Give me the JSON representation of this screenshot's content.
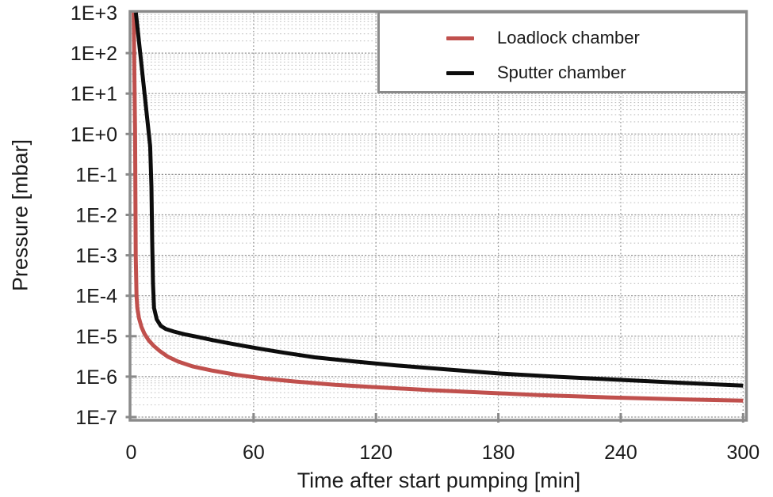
{
  "chart_data": {
    "type": "line",
    "title": "",
    "xlabel": "Time after start pumping [min]",
    "ylabel": "Pressure [mbar]",
    "x_ticks": [
      0,
      60,
      120,
      180,
      240,
      300
    ],
    "x_tick_labels": [
      "0",
      "60",
      "120",
      "180",
      "240",
      "300"
    ],
    "xlim": [
      0,
      300
    ],
    "y_scale": "log",
    "ylim": [
      1e-07,
      1000
    ],
    "y_tick_exponents": [
      3,
      2,
      1,
      0,
      -1,
      -2,
      -3,
      -4,
      -5,
      -6,
      -7
    ],
    "y_tick_labels": [
      "1E+3",
      "1E+2",
      "1E+1",
      "1E+0",
      "1E-1",
      "1E-2",
      "1E-3",
      "1E-4",
      "1E-5",
      "1E-6",
      "1E-7"
    ],
    "grid": {
      "horizontal_major": true,
      "horizontal_minor": true,
      "vertical_major": true,
      "style": "dotted"
    },
    "legend": {
      "position": "top-right",
      "entries": [
        {
          "label": "Loadlock chamber",
          "color": "#c0504d"
        },
        {
          "label": "Sputter chamber",
          "color": "#0d0d0d"
        }
      ]
    },
    "series": [
      {
        "name": "Loadlock chamber",
        "color": "#c0504d",
        "points": [
          [
            1.2,
            1000
          ],
          [
            1.9,
            1.0
          ],
          [
            2.2,
            0.001
          ],
          [
            2.6,
            0.0001
          ],
          [
            3.0,
            5e-05
          ],
          [
            3.8,
            2.8e-05
          ],
          [
            5,
            1.7e-05
          ],
          [
            6.5,
            1.15e-05
          ],
          [
            8.5,
            8e-06
          ],
          [
            11,
            5.8e-06
          ],
          [
            14,
            4.3e-06
          ],
          [
            18,
            3.1e-06
          ],
          [
            23,
            2.35e-06
          ],
          [
            30,
            1.8e-06
          ],
          [
            40,
            1.4e-06
          ],
          [
            52,
            1.1e-06
          ],
          [
            65,
            9e-07
          ],
          [
            80,
            7.6e-07
          ],
          [
            100,
            6.3e-07
          ],
          [
            120,
            5.5e-07
          ],
          [
            145,
            4.7e-07
          ],
          [
            170,
            4.1e-07
          ],
          [
            200,
            3.5e-07
          ],
          [
            235,
            3.05e-07
          ],
          [
            270,
            2.75e-07
          ],
          [
            300,
            2.55e-07
          ]
        ]
      },
      {
        "name": "Sputter chamber",
        "color": "#0d0d0d",
        "points": [
          [
            2.3,
            1000
          ],
          [
            9.3,
            0.5
          ],
          [
            9.9,
            0.05
          ],
          [
            10.3,
            0.002
          ],
          [
            10.7,
            0.0002
          ],
          [
            11.2,
            5e-05
          ],
          [
            12.5,
            2.6e-05
          ],
          [
            14.5,
            1.8e-05
          ],
          [
            17,
            1.5e-05
          ],
          [
            21,
            1.3e-05
          ],
          [
            26,
            1.12e-05
          ],
          [
            33,
            9.5e-06
          ],
          [
            40,
            8e-06
          ],
          [
            50,
            6.4e-06
          ],
          [
            62,
            5e-06
          ],
          [
            75,
            3.9e-06
          ],
          [
            90,
            3e-06
          ],
          [
            110,
            2.35e-06
          ],
          [
            130,
            1.9e-06
          ],
          [
            155,
            1.5e-06
          ],
          [
            180,
            1.2e-06
          ],
          [
            210,
            9.8e-07
          ],
          [
            240,
            8.3e-07
          ],
          [
            270,
            7e-07
          ],
          [
            300,
            6e-07
          ]
        ]
      }
    ]
  },
  "colors": {
    "axis": "#8a8a8a",
    "grid_major": "#949494",
    "grid_minor": "#c2c2c2",
    "text": "#1a1a1a",
    "background": "#ffffff"
  }
}
